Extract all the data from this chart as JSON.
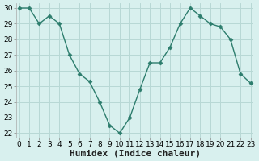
{
  "x": [
    0,
    1,
    2,
    3,
    4,
    5,
    6,
    7,
    8,
    9,
    10,
    11,
    12,
    13,
    14,
    15,
    16,
    17,
    18,
    19,
    20,
    21,
    22,
    23
  ],
  "y": [
    30,
    30,
    29,
    29.5,
    29,
    27,
    25.8,
    25.3,
    24,
    22.5,
    22,
    23,
    24.8,
    26.5,
    26.5,
    27.5,
    29,
    30,
    29.5,
    29,
    28.8,
    28,
    25.8,
    25.2
  ],
  "line_color": "#2d7d6d",
  "marker": "D",
  "marker_size": 2.5,
  "bg_color": "#d8f0ee",
  "grid_color": "#b8d8d5",
  "xlabel": "Humidex (Indice chaleur)",
  "xlabel_fontsize": 8,
  "ylim_min": 21.7,
  "ylim_max": 30.3,
  "xlim_min": -0.3,
  "xlim_max": 23.3,
  "yticks": [
    22,
    23,
    24,
    25,
    26,
    27,
    28,
    29,
    30
  ],
  "xticks": [
    0,
    1,
    2,
    3,
    4,
    5,
    6,
    7,
    8,
    9,
    10,
    11,
    12,
    13,
    14,
    15,
    16,
    17,
    18,
    19,
    20,
    21,
    22,
    23
  ],
  "tick_fontsize": 6.5,
  "line_width": 1.0
}
